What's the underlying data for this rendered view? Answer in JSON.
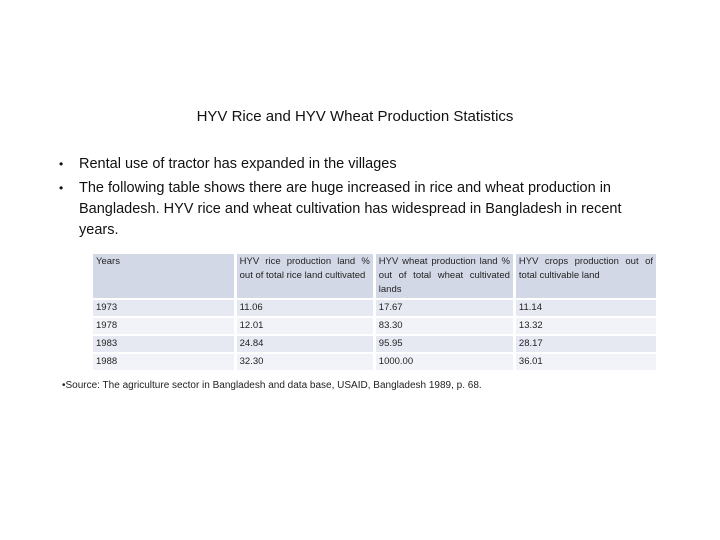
{
  "slide": {
    "title": "HYV Rice and HYV Wheat Production Statistics",
    "bullets": [
      "Rental use of tractor has expanded in the villages",
      "The following table shows there are huge increased in rice and wheat production in Bangladesh. HYV rice and wheat cultivation has widespread in Bangladesh in recent years."
    ],
    "bullet_symbol": "•"
  },
  "table": {
    "headers": [
      "Years",
      "HYV rice production land % out of total rice land cultivated",
      "HYV wheat production land % out of total wheat cultivated lands",
      "HYV crops production out of total cultivable land"
    ],
    "rows": [
      [
        "1973",
        "11.06",
        "17.67",
        "11.14"
      ],
      [
        "1978",
        "12.01",
        "83.30",
        "13.32"
      ],
      [
        "1983",
        "24.84",
        "95.95",
        "28.17"
      ],
      [
        "1988",
        "32.30",
        "1000.00",
        "36.01"
      ]
    ]
  },
  "source": "•Source: The agriculture sector in Bangladesh and data base, USAID, Bangladesh 1989, p. 68."
}
